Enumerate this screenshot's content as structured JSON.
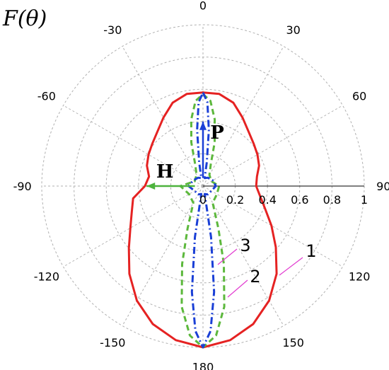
{
  "chart_data": {
    "type": "polar-line",
    "title": "F(θ)",
    "theta_direction": "clockwise, 0 at top",
    "theta_ticks": [
      "0",
      "30",
      "60",
      "90",
      "120",
      "150",
      "180",
      "-150",
      "-120",
      "-90",
      "-60",
      "-30"
    ],
    "theta_tick_values": [
      0,
      30,
      60,
      90,
      120,
      150,
      180,
      -150,
      -120,
      -90,
      -60,
      -30
    ],
    "r_ticks": [
      "0",
      "0.2",
      "0.4",
      "0.6",
      "0.8",
      "1"
    ],
    "r_tick_values": [
      0,
      0.2,
      0.4,
      0.6,
      0.8,
      1
    ],
    "rlim": [
      0,
      1
    ],
    "grid": true,
    "vectors": [
      {
        "label": "H",
        "theta_deg": -90,
        "r": 0.35,
        "color": "#4db33d"
      },
      {
        "label": "P",
        "theta_deg": 0,
        "r": 0.4,
        "color": "#1a3fd6"
      }
    ],
    "series": [
      {
        "name": "1",
        "color": "#e52222",
        "style": "solid",
        "points": [
          [
            0,
            0.58
          ],
          [
            10,
            0.58
          ],
          [
            20,
            0.55
          ],
          [
            30,
            0.49
          ],
          [
            40,
            0.44
          ],
          [
            50,
            0.41
          ],
          [
            60,
            0.39
          ],
          [
            70,
            0.37
          ],
          [
            80,
            0.34
          ],
          [
            90,
            0.33
          ],
          [
            100,
            0.36
          ],
          [
            110,
            0.41
          ],
          [
            120,
            0.49
          ],
          [
            130,
            0.59
          ],
          [
            140,
            0.71
          ],
          [
            150,
            0.82
          ],
          [
            160,
            0.91
          ],
          [
            170,
            0.97
          ],
          [
            180,
            1.0
          ],
          [
            -170,
            0.97
          ],
          [
            -160,
            0.91
          ],
          [
            -150,
            0.82
          ],
          [
            -140,
            0.71
          ],
          [
            -130,
            0.6
          ],
          [
            -120,
            0.52
          ],
          [
            -110,
            0.47
          ],
          [
            -100,
            0.44
          ],
          [
            -90,
            0.36
          ],
          [
            -80,
            0.34
          ],
          [
            -70,
            0.37
          ],
          [
            -60,
            0.39
          ],
          [
            -50,
            0.41
          ],
          [
            -40,
            0.44
          ],
          [
            -30,
            0.49
          ],
          [
            -20,
            0.55
          ],
          [
            -10,
            0.58
          ]
        ]
      },
      {
        "name": "2",
        "color": "#5cb83c",
        "style": "dashed",
        "points": [
          [
            0,
            0.57
          ],
          [
            5,
            0.53
          ],
          [
            10,
            0.42
          ],
          [
            15,
            0.28
          ],
          [
            20,
            0.14
          ],
          [
            30,
            0.08
          ],
          [
            60,
            0.06
          ],
          [
            90,
            0.1
          ],
          [
            120,
            0.1
          ],
          [
            150,
            0.12
          ],
          [
            160,
            0.28
          ],
          [
            165,
            0.5
          ],
          [
            170,
            0.76
          ],
          [
            175,
            0.93
          ],
          [
            180,
            1.0
          ],
          [
            -175,
            0.93
          ],
          [
            -170,
            0.76
          ],
          [
            -165,
            0.5
          ],
          [
            -160,
            0.28
          ],
          [
            -150,
            0.12
          ],
          [
            -120,
            0.1
          ],
          [
            -90,
            0.14
          ],
          [
            -60,
            0.06
          ],
          [
            -30,
            0.08
          ],
          [
            -20,
            0.14
          ],
          [
            -15,
            0.28
          ],
          [
            -10,
            0.42
          ],
          [
            -5,
            0.53
          ]
        ]
      },
      {
        "name": "3",
        "color": "#1a3fd6",
        "style": "dashdot",
        "points": [
          [
            0,
            0.58
          ],
          [
            3,
            0.52
          ],
          [
            6,
            0.35
          ],
          [
            9,
            0.15
          ],
          [
            12,
            0.05
          ],
          [
            30,
            0.06
          ],
          [
            60,
            0.07
          ],
          [
            90,
            0.08
          ],
          [
            120,
            0.06
          ],
          [
            150,
            0.06
          ],
          [
            168,
            0.05
          ],
          [
            171,
            0.32
          ],
          [
            174,
            0.66
          ],
          [
            177,
            0.9
          ],
          [
            180,
            1.0
          ],
          [
            -177,
            0.9
          ],
          [
            -174,
            0.66
          ],
          [
            -171,
            0.32
          ],
          [
            -168,
            0.05
          ],
          [
            -150,
            0.06
          ],
          [
            -120,
            0.06
          ],
          [
            -90,
            0.09
          ],
          [
            -60,
            0.07
          ],
          [
            -30,
            0.06
          ],
          [
            -12,
            0.05
          ],
          [
            -9,
            0.15
          ],
          [
            -6,
            0.35
          ],
          [
            -3,
            0.52
          ]
        ]
      }
    ]
  }
}
